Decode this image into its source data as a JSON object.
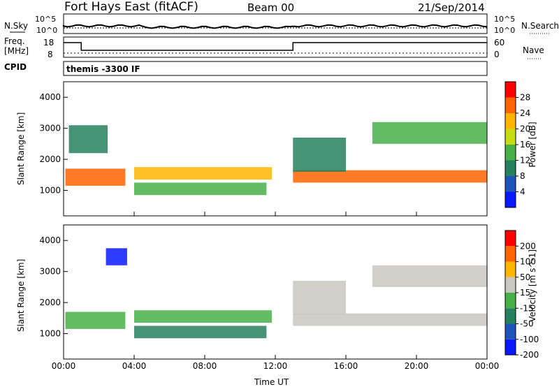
{
  "header": {
    "title": "Fort Hays East (fitACF)",
    "beam": "Beam 00",
    "date": "21/Sep/2014"
  },
  "top_panels": {
    "nsky_label": "N.Sky",
    "nsearch_label": "N.Search",
    "nsky_ticks": [
      "10^5",
      "10^0"
    ],
    "nsearch_ticks": [
      "10^5",
      "10^0"
    ],
    "freq_label_1": "Freq.",
    "freq_label_2": "[MHz]",
    "freq_ticks": [
      "18",
      "8"
    ],
    "nave_label": "Nave",
    "nave_ticks": [
      "60",
      "0"
    ],
    "cpid_label": "CPID",
    "cpid_text": "themis -3300 IF"
  },
  "chart_data": [
    {
      "type": "heatmap",
      "title": "",
      "xlabel": "Time UT",
      "ylabel": "Slant Range [km]",
      "x_ticks": [
        "00:00",
        "04:00",
        "08:00",
        "12:00",
        "16:00",
        "20:00",
        "00:00"
      ],
      "xlim": [
        0,
        24
      ],
      "y_ticks": [
        1000,
        2000,
        3000,
        4000
      ],
      "ylim": [
        180,
        4500
      ],
      "colorbar": {
        "label": "Power [dB]",
        "ticks": [
          "4",
          "8",
          "12",
          "16",
          "20",
          "24",
          "28"
        ],
        "colors": [
          "#0a18ff",
          "#1e54b8",
          "#26805e",
          "#48b048",
          "#c8dc14",
          "#ffb400",
          "#ff6400",
          "#ff0000"
        ]
      },
      "echo_regions": [
        {
          "t_start": 0.1,
          "t_end": 3.5,
          "r_min": 1150,
          "r_max": 1700,
          "level": 0.8
        },
        {
          "t_start": 0.3,
          "t_end": 2.5,
          "r_min": 2200,
          "r_max": 3100,
          "level": 0.3
        },
        {
          "t_start": 4.0,
          "t_end": 11.8,
          "r_min": 1350,
          "r_max": 1750,
          "level": 0.65
        },
        {
          "t_start": 4.0,
          "t_end": 11.5,
          "r_min": 850,
          "r_max": 1250,
          "level": 0.4
        },
        {
          "t_start": 13.0,
          "t_end": 24.0,
          "r_min": 1250,
          "r_max": 1650,
          "level": 0.85
        },
        {
          "t_start": 13.0,
          "t_end": 16.0,
          "r_min": 1600,
          "r_max": 2700,
          "level": 0.35
        },
        {
          "t_start": 17.5,
          "t_end": 24.0,
          "r_min": 2500,
          "r_max": 3200,
          "level": 0.45
        }
      ]
    },
    {
      "type": "heatmap",
      "title": "",
      "xlabel": "Time UT",
      "ylabel": "Slant Range [km]",
      "x_ticks": [
        "00:00",
        "04:00",
        "08:00",
        "12:00",
        "16:00",
        "20:00",
        "00:00"
      ],
      "xlim": [
        0,
        24
      ],
      "y_ticks": [
        1000,
        2000,
        3000,
        4000
      ],
      "ylim": [
        180,
        4500
      ],
      "colorbar": {
        "label": "Velocity [m s^-1]",
        "ticks": [
          "200",
          "100",
          "50",
          "15",
          "-15",
          "-50",
          "-100",
          "-200"
        ],
        "colors": [
          "#0a18ff",
          "#1e54b8",
          "#26805e",
          "#48b048",
          "#c8c8c0",
          "#ffb400",
          "#ff6400",
          "#ff0000"
        ]
      },
      "echo_regions": [
        {
          "t_start": 0.1,
          "t_end": 3.5,
          "r_min": 1150,
          "r_max": 1700,
          "level": 0.45
        },
        {
          "t_start": 2.4,
          "t_end": 3.6,
          "r_min": 3200,
          "r_max": 3750,
          "level": 0.05
        },
        {
          "t_start": 4.0,
          "t_end": 11.8,
          "r_min": 1350,
          "r_max": 1750,
          "level": 0.4
        },
        {
          "t_start": 4.0,
          "t_end": 11.5,
          "r_min": 850,
          "r_max": 1250,
          "level": 0.3
        },
        {
          "t_start": 13.0,
          "t_end": 24.0,
          "r_min": 1250,
          "r_max": 1650,
          "level": 0.55
        },
        {
          "t_start": 13.0,
          "t_end": 16.0,
          "r_min": 1600,
          "r_max": 2700,
          "level": 0.55
        },
        {
          "t_start": 17.5,
          "t_end": 24.0,
          "r_min": 2500,
          "r_max": 3200,
          "level": 0.55
        }
      ]
    }
  ]
}
